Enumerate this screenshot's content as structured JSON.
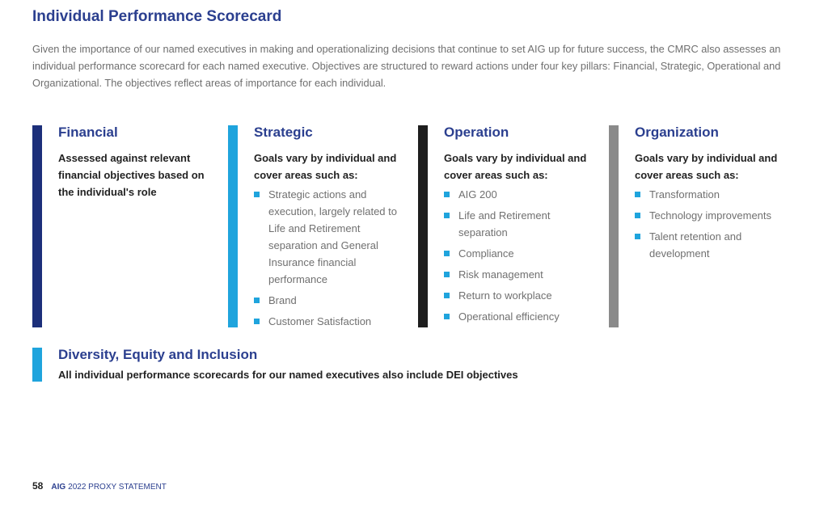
{
  "title": "Individual Performance Scorecard",
  "intro": "Given the importance of our named executives in making and operationalizing decisions that continue to set AIG up for future success, the CMRC also assesses an individual performance scorecard for each named executive. Objectives are structured to reward actions under four key pillars: Financial, Strategic, Operational and Organizational. The objectives reflect areas of importance for each individual.",
  "pillars": [
    {
      "title": "Financial",
      "description": "Assessed against relevant financial objectives based on the individual's role",
      "color": "#1c2f7a",
      "items": []
    },
    {
      "title": "Strategic",
      "description": "Goals vary by individual and cover areas such as:",
      "color": "#1fa4dd",
      "items": [
        "Strategic actions and execution, largely related to Life and Retirement separation and General Insurance financial performance",
        "Brand",
        "Customer Satisfaction"
      ]
    },
    {
      "title": "Operation",
      "description": "Goals vary by individual and cover areas such as:",
      "color": "#1e1e1e",
      "items": [
        "AIG 200",
        "Life and Retirement separation",
        "Compliance",
        "Risk management",
        "Return to workplace",
        "Operational efficiency"
      ]
    },
    {
      "title": "Organization",
      "description": "Goals vary by individual and cover areas such as:",
      "color": "#8a8a8a",
      "items": [
        "Transformation",
        "Technology improvements",
        "Talent retention and development"
      ]
    }
  ],
  "dei": {
    "title": "Diversity, Equity and Inclusion",
    "description": "All individual performance scorecards for our named executives also include DEI objectives"
  },
  "footer": {
    "page_number": "58",
    "brand": "AIG",
    "document": "2022 PROXY STATEMENT"
  }
}
